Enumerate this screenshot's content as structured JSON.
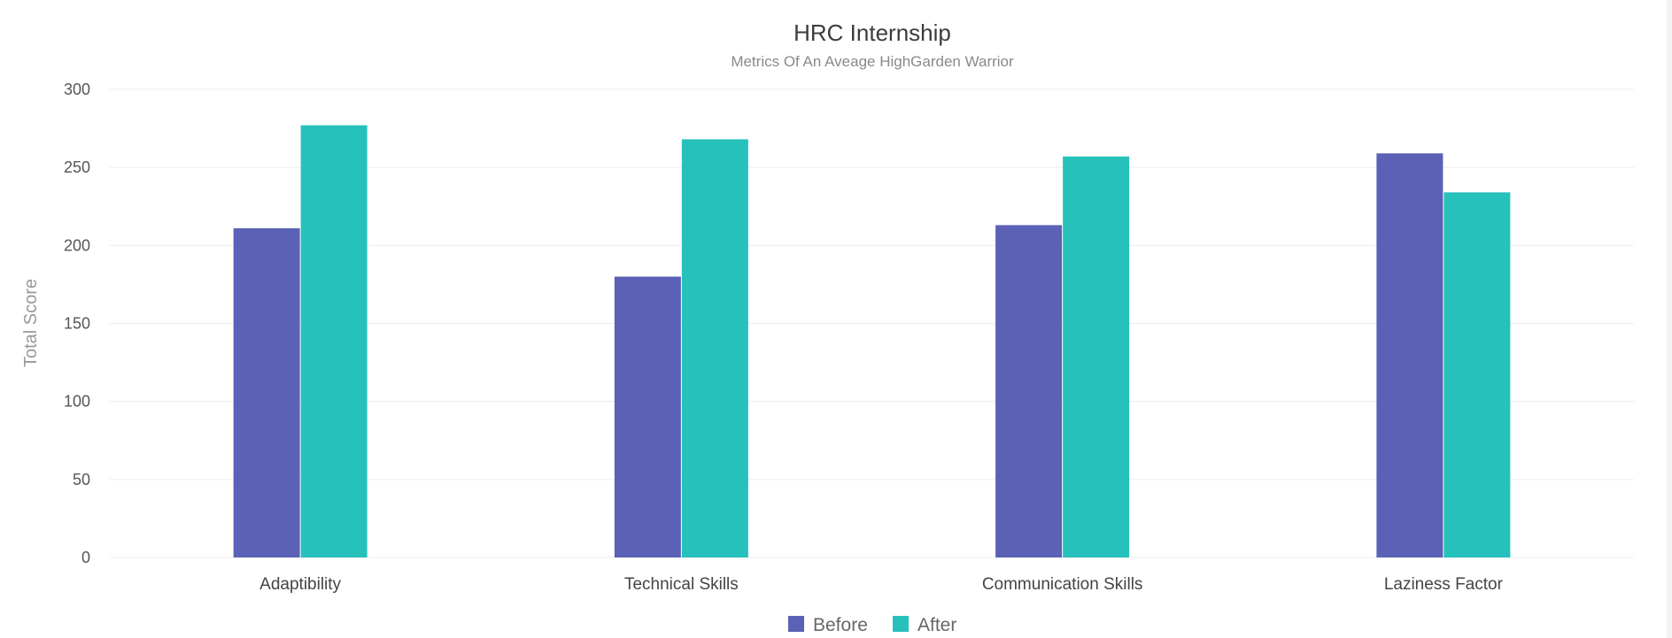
{
  "chart_data": {
    "type": "bar",
    "title": "HRC Internship",
    "subtitle": "Metrics Of An Aveage HighGarden Warrior",
    "xlabel": "",
    "ylabel": "Total Score",
    "ylim": [
      0,
      300
    ],
    "yticks": [
      0,
      50,
      100,
      150,
      200,
      250,
      300
    ],
    "grid": true,
    "legend_placement": "bottom-center",
    "categories": [
      "Adaptibility",
      "Technical Skills",
      "Communication Skills",
      "Laziness Factor"
    ],
    "series": [
      {
        "name": "Before",
        "color": "#5b61b4",
        "values": [
          211,
          180,
          213,
          259
        ]
      },
      {
        "name": "After",
        "color": "#27c1bc",
        "values": [
          277,
          268,
          257,
          234
        ]
      }
    ]
  }
}
